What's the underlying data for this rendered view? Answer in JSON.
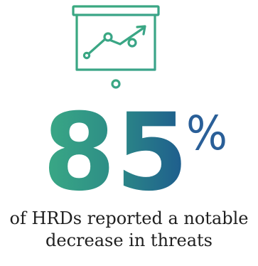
{
  "stat": {
    "number": "85",
    "unit": "%"
  },
  "caption": {
    "line1": "of HRDs reported a notable",
    "line2": "decrease in threats"
  },
  "icon": {
    "name": "presentation-chart-icon"
  },
  "colors": {
    "gradient_start": "#38a783",
    "gradient_end": "#1d5a8e",
    "unit": "#2a5f98",
    "text": "#1f1f1f"
  }
}
